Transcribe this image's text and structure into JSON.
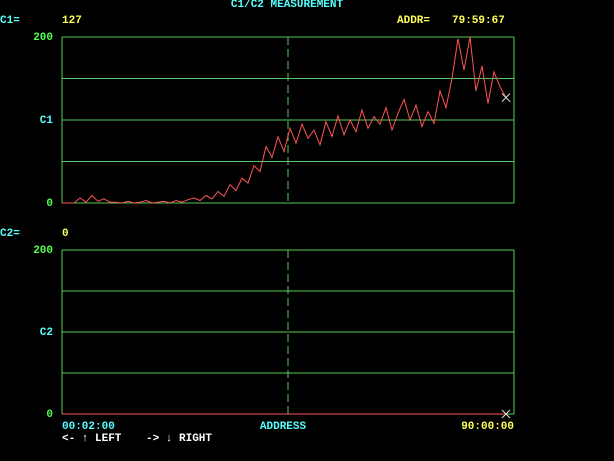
{
  "header": {
    "title": "C1/C2 MEASUREMENT",
    "addr_label": "ADDR=",
    "addr_value": "79:59:67"
  },
  "chart_data": [
    {
      "type": "line",
      "readout_label": "C1=",
      "readout_value": 127,
      "series": [
        {
          "color": "#ff5555",
          "values": [
            0,
            0,
            0,
            6,
            1,
            9,
            2,
            5,
            1,
            1,
            0,
            2,
            0,
            1,
            3,
            0,
            1,
            2,
            0,
            3,
            1,
            4,
            6,
            3,
            9,
            5,
            14,
            8,
            22,
            15,
            30,
            24,
            45,
            38,
            68,
            55,
            80,
            62,
            90,
            72,
            95,
            78,
            88,
            70,
            98,
            80,
            105,
            82,
            100,
            86,
            112,
            90,
            104,
            95,
            115,
            88,
            108,
            125,
            100,
            118,
            92,
            110,
            96,
            135,
            115,
            150,
            198,
            160,
            200,
            135,
            165,
            120,
            158,
            140,
            127
          ]
        }
      ],
      "ylim": [
        0,
        200
      ],
      "yticks": [
        0,
        {
          "value": 50,
          "label": null
        },
        {
          "value": 100,
          "label": "C1"
        },
        {
          "value": 150,
          "label": null
        },
        200
      ],
      "grid": true,
      "grid_color": "#55cc55"
    },
    {
      "type": "line",
      "readout_label": "C2=",
      "readout_value": 0,
      "series": [
        {
          "color": "#ff5555",
          "values": [
            0,
            0
          ]
        }
      ],
      "ylim": [
        0,
        200
      ],
      "yticks": [
        0,
        {
          "value": 50,
          "label": null
        },
        {
          "value": 100,
          "label": "C2"
        },
        {
          "value": 150,
          "label": null
        },
        200
      ],
      "grid": true,
      "grid_color": "#55cc55"
    }
  ],
  "x_axis": {
    "label": "ADDRESS",
    "start": "00:02:00",
    "end": "90:00:00"
  },
  "footer": {
    "left": "<- ↑ LEFT",
    "right": "-> ↓ RIGHT"
  }
}
